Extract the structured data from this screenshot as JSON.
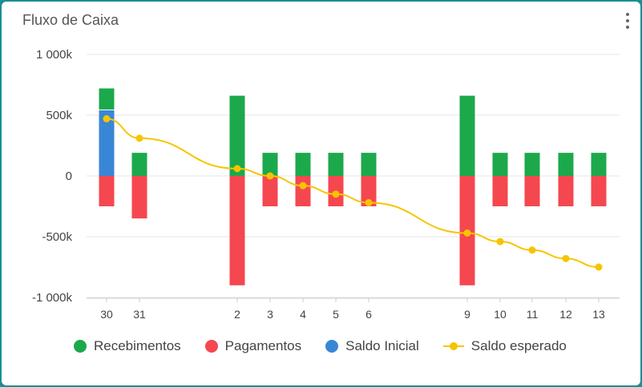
{
  "card": {
    "title": "Fluxo de Caixa"
  },
  "colors": {
    "recebimentos": "#1ba94c",
    "pagamentos": "#f5474f",
    "saldo_inicial": "#3a86d6",
    "saldo_esperado": "#f7c400",
    "grid": "#e6e6e6"
  },
  "chart_data": {
    "type": "bar",
    "title": "Fluxo de Caixa",
    "categories": [
      "30",
      "31",
      "2",
      "3",
      "4",
      "5",
      "6",
      "9",
      "10",
      "11",
      "12",
      "13"
    ],
    "ylim": [
      -1000000,
      1000000
    ],
    "y_ticks": [
      {
        "value": 1000000,
        "label": "1 000k"
      },
      {
        "value": 500000,
        "label": "500k"
      },
      {
        "value": 0,
        "label": "0"
      },
      {
        "value": -500000,
        "label": "-500k"
      },
      {
        "value": -1000000,
        "label": "-1 000k"
      }
    ],
    "grid": true,
    "legend_position": "bottom",
    "series": [
      {
        "name": "Recebimentos",
        "type": "bar",
        "stack": "pos",
        "values": [
          180000,
          190000,
          660000,
          190000,
          190000,
          190000,
          190000,
          660000,
          190000,
          190000,
          190000,
          190000
        ]
      },
      {
        "name": "Pagamentos",
        "type": "bar",
        "stack": "neg",
        "values": [
          -250000,
          -350000,
          -900000,
          -250000,
          -250000,
          -250000,
          -250000,
          -900000,
          -250000,
          -250000,
          -250000,
          -250000
        ]
      },
      {
        "name": "Saldo Inicial",
        "type": "bar",
        "stack": "pos",
        "values": [
          540000,
          0,
          0,
          0,
          0,
          0,
          0,
          0,
          0,
          0,
          0,
          0
        ]
      },
      {
        "name": "Saldo esperado",
        "type": "line",
        "values": [
          470000,
          310000,
          60000,
          0,
          -80000,
          -150000,
          -220000,
          -470000,
          -540000,
          -610000,
          -680000,
          -750000
        ]
      }
    ]
  },
  "legend": [
    {
      "label": "Recebimentos",
      "kind": "dot",
      "color": "#1ba94c"
    },
    {
      "label": "Pagamentos",
      "kind": "dot",
      "color": "#f5474f"
    },
    {
      "label": "Saldo Inicial",
      "kind": "dot",
      "color": "#3a86d6"
    },
    {
      "label": "Saldo esperado",
      "kind": "line",
      "color": "#f7c400"
    }
  ]
}
